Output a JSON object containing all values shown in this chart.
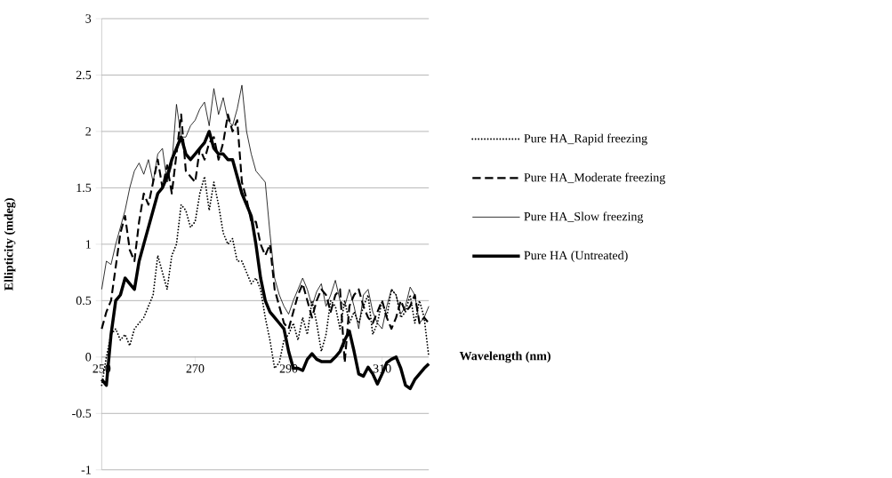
{
  "chart_data": {
    "type": "line",
    "xlabel": "Wavelength (nm)",
    "ylabel": "Ellipticity (mdeg)",
    "x": [
      250,
      251,
      252,
      253,
      254,
      255,
      256,
      257,
      258,
      259,
      260,
      261,
      262,
      263,
      264,
      265,
      266,
      267,
      268,
      269,
      270,
      271,
      272,
      273,
      274,
      275,
      276,
      277,
      278,
      279,
      280,
      281,
      282,
      283,
      284,
      285,
      286,
      287,
      288,
      289,
      290,
      291,
      292,
      293,
      294,
      295,
      296,
      297,
      298,
      299,
      300,
      301,
      302,
      303,
      304,
      305,
      306,
      307,
      308,
      309,
      310,
      311,
      312,
      313,
      314,
      315,
      316,
      317,
      318,
      319,
      320
    ],
    "series": [
      {
        "name": "Pure HA_Rapid freezing",
        "color": "#000000",
        "line_style": "dotted",
        "values": [
          -0.25,
          0.0,
          0.2,
          0.25,
          0.15,
          0.2,
          0.1,
          0.25,
          0.3,
          0.35,
          0.45,
          0.55,
          0.9,
          0.75,
          0.6,
          0.9,
          1.0,
          1.35,
          1.3,
          1.15,
          1.2,
          1.45,
          1.6,
          1.3,
          1.55,
          1.35,
          1.1,
          1.0,
          1.05,
          0.85,
          0.85,
          0.75,
          0.65,
          0.7,
          0.6,
          0.35,
          0.15,
          -0.1,
          -0.05,
          0.15,
          0.2,
          0.3,
          0.15,
          0.35,
          0.2,
          0.5,
          0.3,
          0.05,
          0.2,
          0.5,
          0.45,
          0.25,
          0.5,
          0.3,
          0.4,
          0.3,
          0.45,
          0.55,
          0.2,
          0.3,
          0.5,
          0.35,
          0.6,
          0.55,
          0.35,
          0.4,
          0.55,
          0.3,
          0.5,
          0.35,
          0.0
        ]
      },
      {
        "name": "Pure HA_Moderate freezing",
        "color": "#000000",
        "line_style": "dashed",
        "values": [
          0.25,
          0.4,
          0.5,
          0.8,
          1.1,
          1.25,
          0.95,
          0.85,
          1.2,
          1.45,
          1.35,
          1.55,
          1.75,
          1.5,
          1.7,
          1.45,
          1.8,
          2.15,
          1.65,
          1.6,
          1.55,
          1.85,
          1.75,
          1.9,
          1.95,
          1.75,
          1.9,
          2.15,
          2.0,
          2.1,
          1.55,
          1.4,
          1.2,
          1.2,
          1.0,
          0.9,
          1.0,
          0.6,
          0.45,
          0.3,
          0.25,
          0.4,
          0.55,
          0.65,
          0.5,
          0.35,
          0.5,
          0.6,
          0.55,
          0.4,
          0.55,
          0.6,
          -0.05,
          0.45,
          0.55,
          0.6,
          0.45,
          0.35,
          0.3,
          0.4,
          0.5,
          0.35,
          0.25,
          0.35,
          0.5,
          0.4,
          0.45,
          0.55,
          0.3,
          0.35,
          0.3
        ]
      },
      {
        "name": "Pure HA_Slow freezing",
        "color": "#000000",
        "line_style": "solid",
        "values": [
          0.6,
          0.85,
          0.82,
          1.0,
          1.15,
          1.3,
          1.5,
          1.65,
          1.72,
          1.62,
          1.75,
          1.55,
          1.8,
          1.85,
          1.55,
          1.7,
          2.24,
          1.95,
          1.95,
          2.05,
          2.1,
          2.2,
          2.26,
          2.05,
          2.38,
          2.15,
          2.3,
          2.1,
          2.05,
          2.2,
          2.41,
          2.0,
          1.8,
          1.65,
          1.6,
          1.55,
          1.1,
          0.7,
          0.55,
          0.45,
          0.38,
          0.5,
          0.6,
          0.7,
          0.6,
          0.45,
          0.58,
          0.65,
          0.45,
          0.55,
          0.68,
          0.5,
          0.45,
          0.6,
          0.45,
          0.25,
          0.55,
          0.6,
          0.4,
          0.3,
          0.25,
          0.45,
          0.6,
          0.55,
          0.38,
          0.45,
          0.62,
          0.55,
          0.3,
          0.35,
          0.45
        ]
      },
      {
        "name": "Pure HA (Untreated)",
        "color": "#000000",
        "line_style": "solid",
        "values": [
          -0.2,
          -0.25,
          0.2,
          0.5,
          0.55,
          0.7,
          0.65,
          0.6,
          0.85,
          1.0,
          1.15,
          1.3,
          1.45,
          1.5,
          1.6,
          1.75,
          1.85,
          1.95,
          1.8,
          1.75,
          1.8,
          1.85,
          1.9,
          2.0,
          1.85,
          1.8,
          1.8,
          1.75,
          1.75,
          1.6,
          1.45,
          1.35,
          1.25,
          1.0,
          0.7,
          0.5,
          0.4,
          0.35,
          0.3,
          0.25,
          0.05,
          -0.1,
          -0.1,
          -0.12,
          -0.02,
          0.03,
          -0.02,
          -0.04,
          -0.04,
          -0.04,
          0.0,
          0.05,
          0.15,
          0.23,
          0.05,
          -0.15,
          -0.17,
          -0.09,
          -0.15,
          -0.24,
          -0.15,
          -0.05,
          -0.02,
          0.0,
          -0.1,
          -0.25,
          -0.28,
          -0.2,
          -0.15,
          -0.1,
          -0.06
        ]
      }
    ],
    "xlim": [
      250,
      320
    ],
    "xticks": [
      250,
      270,
      290,
      310
    ],
    "ylim": [
      -1,
      3
    ],
    "yticks": [
      -1,
      -0.5,
      0,
      0.5,
      1,
      1.5,
      2,
      2.5,
      3
    ],
    "grid": "y",
    "legend": "right"
  }
}
